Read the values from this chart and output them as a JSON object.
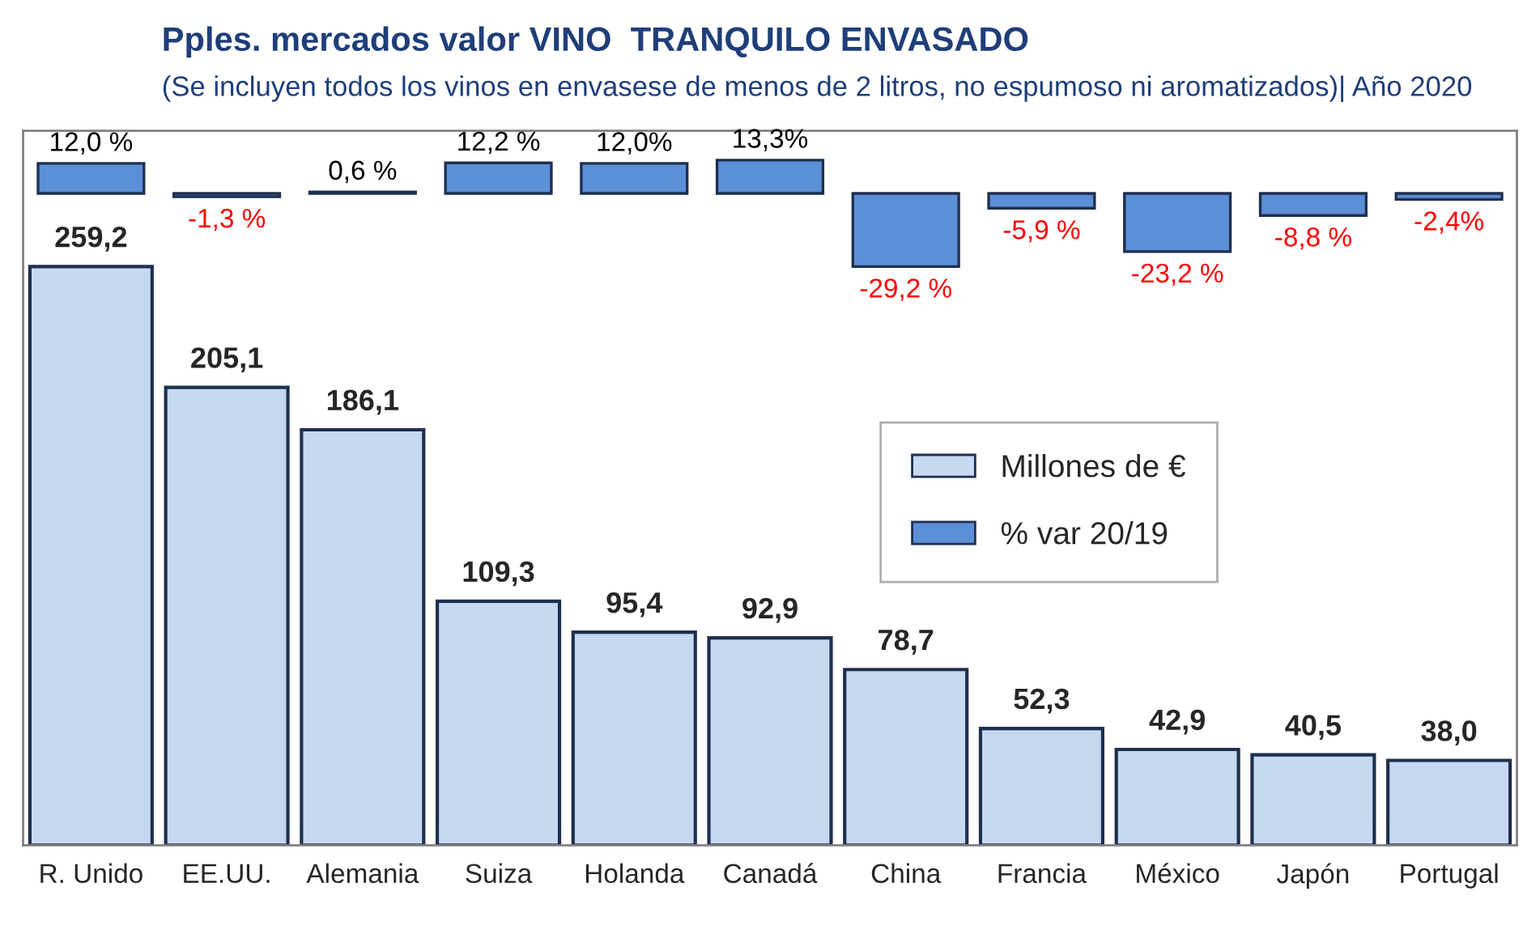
{
  "chart_data": {
    "type": "bar",
    "title": "Pples. mercados valor VINO  TRANQUILO ENVASADO",
    "subtitle": "(Se incluyen todos los vinos en envasese de menos de 2 litros, no espumoso ni aromatizados)| Año 2020",
    "categories": [
      "R. Unido",
      "EE.UU.",
      "Alemania",
      "Suiza",
      "Holanda",
      "Canadá",
      "China",
      "Francia",
      "México",
      "Japón",
      "Portugal"
    ],
    "series": [
      {
        "name": "Millones de €",
        "color": "#c6d9f1",
        "values": [
          259.2,
          205.1,
          186.1,
          109.3,
          95.4,
          92.9,
          78.7,
          52.3,
          42.9,
          40.5,
          38.0
        ],
        "value_labels": [
          "259,2",
          "205,1",
          "186,1",
          "109,3",
          "95,4",
          "92,9",
          "78,7",
          "52,3",
          "42,9",
          "40,5",
          "38,0"
        ]
      },
      {
        "name": "% var 20/19",
        "color": "#5b8fd6",
        "axis": "y2",
        "values": [
          12.0,
          -1.3,
          0.6,
          12.2,
          12.0,
          13.3,
          -29.2,
          -5.9,
          -23.2,
          -8.8,
          -2.4
        ],
        "value_labels": [
          "12,0 %",
          "-1,3 %",
          "0,6 %",
          "12,2 %",
          "12,0%",
          "13,3%",
          "-29,2 %",
          "-5,9 %",
          "-23,2 %",
          "-8,8 %",
          "-2,4%"
        ]
      }
    ],
    "ylim": [
      0,
      320
    ],
    "y2lim": [
      -260,
      25
    ],
    "legend": "center right",
    "grid": false,
    "tick_labels": "x"
  }
}
